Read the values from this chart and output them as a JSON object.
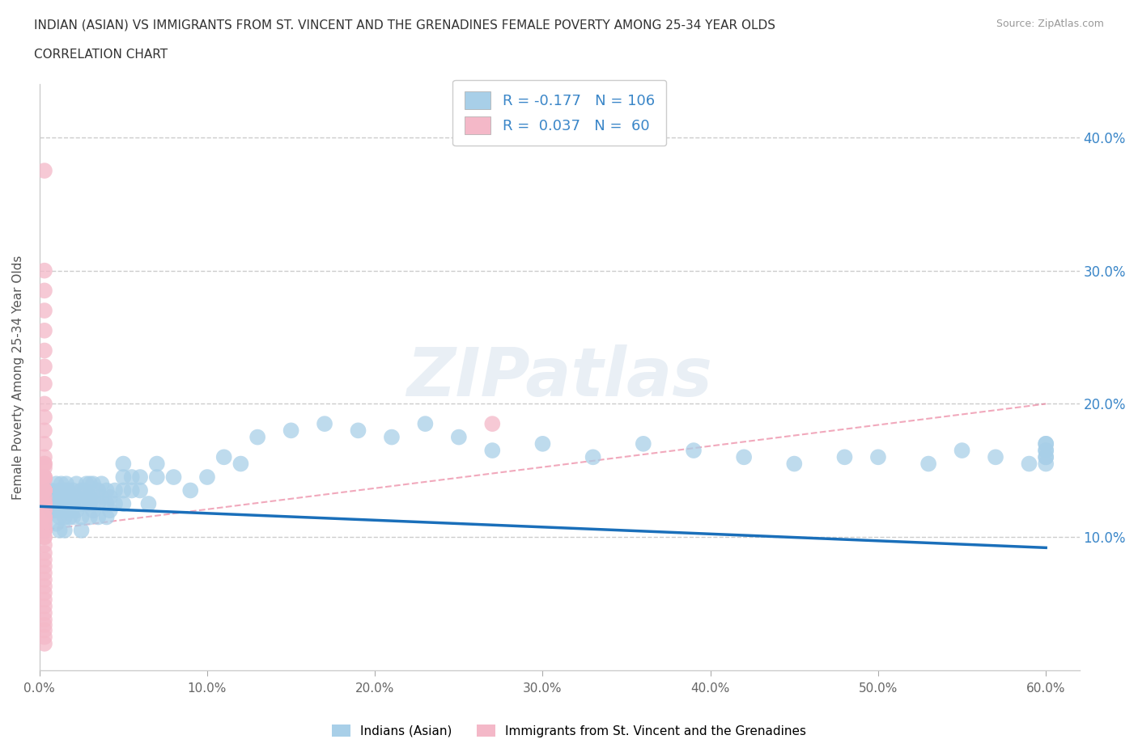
{
  "title_line1": "INDIAN (ASIAN) VS IMMIGRANTS FROM ST. VINCENT AND THE GRENADINES FEMALE POVERTY AMONG 25-34 YEAR OLDS",
  "title_line2": "CORRELATION CHART",
  "source": "Source: ZipAtlas.com",
  "ylabel": "Female Poverty Among 25-34 Year Olds",
  "xlim": [
    0.0,
    0.62
  ],
  "ylim": [
    0.0,
    0.44
  ],
  "xtick_vals": [
    0.0,
    0.1,
    0.2,
    0.3,
    0.4,
    0.5,
    0.6
  ],
  "xtick_labels": [
    "0.0%",
    "10.0%",
    "20.0%",
    "30.0%",
    "40.0%",
    "50.0%",
    "60.0%"
  ],
  "ytick_vals": [
    0.1,
    0.2,
    0.3,
    0.4
  ],
  "ytick_labels_right": [
    "10.0%",
    "20.0%",
    "30.0%",
    "40.0%"
  ],
  "color_indian": "#a8cfe8",
  "color_svg": "#f4b8c8",
  "color_trend_indian": "#1a6fba",
  "color_trend_svg": "#e87090",
  "R_indian": -0.177,
  "N_indian": 106,
  "R_svg": 0.037,
  "N_svg": 60,
  "trend_indian_y0": 0.123,
  "trend_indian_y1": 0.092,
  "trend_svg_y0": 0.105,
  "trend_svg_y1": 0.2,
  "legend_label_indian": "Indians (Asian)",
  "legend_label_svg": "Immigrants from St. Vincent and the Grenadines",
  "watermark": "ZIPatlas",
  "indian_x": [
    0.005,
    0.005,
    0.007,
    0.007,
    0.007,
    0.009,
    0.009,
    0.01,
    0.01,
    0.01,
    0.01,
    0.012,
    0.012,
    0.012,
    0.012,
    0.013,
    0.013,
    0.013,
    0.015,
    0.015,
    0.015,
    0.015,
    0.016,
    0.016,
    0.016,
    0.017,
    0.017,
    0.018,
    0.018,
    0.019,
    0.02,
    0.02,
    0.02,
    0.022,
    0.022,
    0.022,
    0.025,
    0.025,
    0.025,
    0.025,
    0.027,
    0.027,
    0.028,
    0.028,
    0.03,
    0.03,
    0.03,
    0.03,
    0.032,
    0.032,
    0.032,
    0.035,
    0.035,
    0.035,
    0.037,
    0.037,
    0.04,
    0.04,
    0.04,
    0.042,
    0.042,
    0.045,
    0.045,
    0.05,
    0.05,
    0.05,
    0.05,
    0.055,
    0.055,
    0.06,
    0.06,
    0.065,
    0.07,
    0.07,
    0.08,
    0.09,
    0.1,
    0.11,
    0.12,
    0.13,
    0.15,
    0.17,
    0.19,
    0.21,
    0.23,
    0.25,
    0.27,
    0.3,
    0.33,
    0.36,
    0.39,
    0.42,
    0.45,
    0.48,
    0.5,
    0.53,
    0.55,
    0.57,
    0.59,
    0.6,
    0.6,
    0.6,
    0.6,
    0.6,
    0.6,
    0.6
  ],
  "indian_y": [
    0.135,
    0.125,
    0.135,
    0.125,
    0.12,
    0.13,
    0.12,
    0.14,
    0.13,
    0.12,
    0.11,
    0.135,
    0.125,
    0.115,
    0.105,
    0.14,
    0.13,
    0.12,
    0.135,
    0.125,
    0.115,
    0.105,
    0.14,
    0.13,
    0.12,
    0.135,
    0.125,
    0.115,
    0.13,
    0.12,
    0.135,
    0.125,
    0.115,
    0.14,
    0.13,
    0.12,
    0.135,
    0.125,
    0.115,
    0.105,
    0.135,
    0.125,
    0.14,
    0.13,
    0.14,
    0.13,
    0.125,
    0.115,
    0.14,
    0.13,
    0.12,
    0.135,
    0.125,
    0.115,
    0.14,
    0.13,
    0.135,
    0.125,
    0.115,
    0.13,
    0.12,
    0.135,
    0.125,
    0.155,
    0.145,
    0.135,
    0.125,
    0.145,
    0.135,
    0.145,
    0.135,
    0.125,
    0.155,
    0.145,
    0.145,
    0.135,
    0.145,
    0.16,
    0.155,
    0.175,
    0.18,
    0.185,
    0.18,
    0.175,
    0.185,
    0.175,
    0.165,
    0.17,
    0.16,
    0.17,
    0.165,
    0.16,
    0.155,
    0.16,
    0.16,
    0.155,
    0.165,
    0.16,
    0.155,
    0.165,
    0.16,
    0.17,
    0.155,
    0.16,
    0.165,
    0.17
  ],
  "svg_x": [
    0.003,
    0.003,
    0.003,
    0.003,
    0.003,
    0.003,
    0.003,
    0.003,
    0.003,
    0.003,
    0.003,
    0.003,
    0.003,
    0.003,
    0.003,
    0.003,
    0.003,
    0.003,
    0.003,
    0.003,
    0.003,
    0.003,
    0.003,
    0.003,
    0.003,
    0.003,
    0.003,
    0.003,
    0.003,
    0.003,
    0.003,
    0.003,
    0.003,
    0.003,
    0.003,
    0.003,
    0.003,
    0.003,
    0.003,
    0.003,
    0.003,
    0.003,
    0.003,
    0.003,
    0.003,
    0.003,
    0.003,
    0.003,
    0.003,
    0.003,
    0.003,
    0.003,
    0.003,
    0.003,
    0.003,
    0.003,
    0.003,
    0.003,
    0.003,
    0.27
  ],
  "svg_y": [
    0.375,
    0.3,
    0.285,
    0.27,
    0.255,
    0.24,
    0.228,
    0.215,
    0.2,
    0.19,
    0.18,
    0.17,
    0.16,
    0.152,
    0.143,
    0.135,
    0.127,
    0.12,
    0.113,
    0.107,
    0.1,
    0.094,
    0.088,
    0.083,
    0.078,
    0.073,
    0.068,
    0.063,
    0.058,
    0.053,
    0.048,
    0.043,
    0.038,
    0.034,
    0.03,
    0.025,
    0.02,
    0.135,
    0.125,
    0.115,
    0.105,
    0.145,
    0.135,
    0.125,
    0.155,
    0.145,
    0.135,
    0.13,
    0.12,
    0.115,
    0.11,
    0.105,
    0.1,
    0.155,
    0.145,
    0.135,
    0.125,
    0.115,
    0.105,
    0.185
  ]
}
